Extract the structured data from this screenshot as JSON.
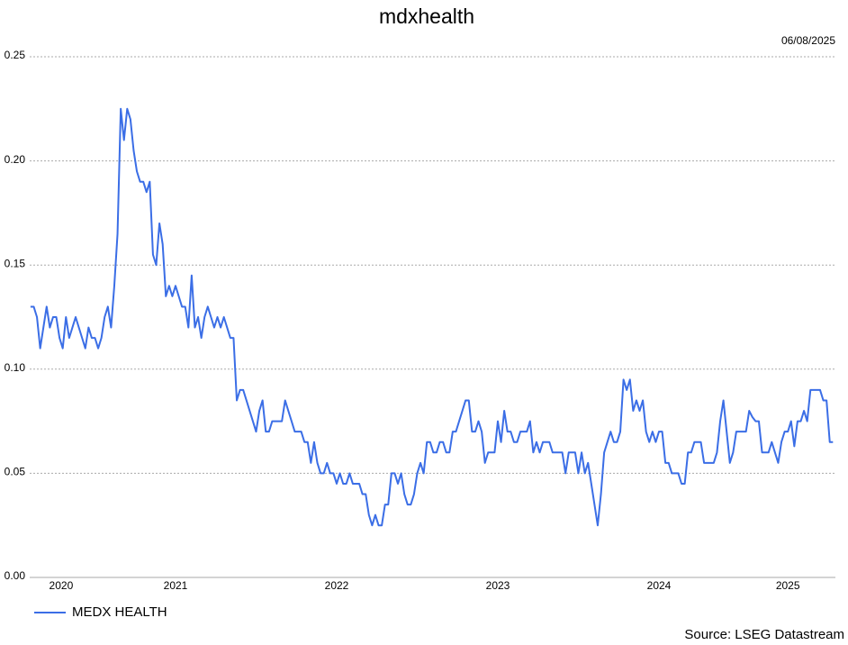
{
  "chart_data": {
    "type": "line",
    "title": "mdxhealth",
    "date": "06/08/2025",
    "source": "Source: LSEG Datastream",
    "x": [
      2020.6,
      2020.62,
      2020.64,
      2020.66,
      2020.68,
      2020.7,
      2020.72,
      2020.74,
      2020.76,
      2020.78,
      2020.8,
      2020.82,
      2020.84,
      2020.86,
      2020.88,
      2020.9,
      2020.92,
      2020.94,
      2020.96,
      2020.98,
      2021,
      2021.02,
      2021.04,
      2021.06,
      2021.08,
      2021.1,
      2021.12,
      2021.14,
      2021.16,
      2021.18,
      2021.2,
      2021.22,
      2021.24,
      2021.26,
      2021.28,
      2021.3,
      2021.32,
      2021.34,
      2021.36,
      2021.38,
      2021.4,
      2021.42,
      2021.44,
      2021.46,
      2021.48,
      2021.5,
      2021.52,
      2021.54,
      2021.56,
      2021.58,
      2021.6,
      2021.62,
      2021.64,
      2021.66,
      2021.68,
      2021.7,
      2021.72,
      2021.74,
      2021.76,
      2021.78,
      2021.8,
      2021.82,
      2021.84,
      2021.86,
      2021.88,
      2021.9,
      2021.92,
      2021.94,
      2021.96,
      2021.98,
      2022,
      2022.02,
      2022.04,
      2022.06,
      2022.08,
      2022.1,
      2022.12,
      2022.14,
      2022.16,
      2022.18,
      2022.2,
      2022.22,
      2022.24,
      2022.26,
      2022.28,
      2022.3,
      2022.32,
      2022.34,
      2022.36,
      2022.38,
      2022.4,
      2022.42,
      2022.44,
      2022.46,
      2022.48,
      2022.5,
      2022.52,
      2022.54,
      2022.56,
      2022.58,
      2022.6,
      2022.62,
      2022.64,
      2022.66,
      2022.68,
      2022.7,
      2022.72,
      2022.74,
      2022.76,
      2022.78,
      2022.8,
      2022.82,
      2022.84,
      2022.86,
      2022.88,
      2022.9,
      2022.92,
      2022.94,
      2022.96,
      2022.98,
      2023,
      2023.02,
      2023.04,
      2023.06,
      2023.08,
      2023.1,
      2023.12,
      2023.14,
      2023.16,
      2023.18,
      2023.2,
      2023.22,
      2023.24,
      2023.26,
      2023.28,
      2023.3,
      2023.32,
      2023.34,
      2023.36,
      2023.38,
      2023.4,
      2023.42,
      2023.44,
      2023.46,
      2023.48,
      2023.5,
      2023.52,
      2023.54,
      2023.56,
      2023.58,
      2023.6,
      2023.62,
      2023.64,
      2023.66,
      2023.68,
      2023.7,
      2023.72,
      2023.74,
      2023.76,
      2023.78,
      2023.8,
      2023.82,
      2023.84,
      2023.86,
      2023.88,
      2023.9,
      2023.92,
      2023.94,
      2023.96,
      2023.98,
      2024,
      2024.02,
      2024.04,
      2024.06,
      2024.08,
      2024.1,
      2024.12,
      2024.14,
      2024.16,
      2024.18,
      2024.2,
      2024.22,
      2024.24,
      2024.26,
      2024.28,
      2024.3,
      2024.32,
      2024.34,
      2024.36,
      2024.38,
      2024.4,
      2024.42,
      2024.44,
      2024.46,
      2024.48,
      2024.5,
      2024.52,
      2024.54,
      2024.56,
      2024.58,
      2024.6,
      2024.62,
      2024.64,
      2024.66,
      2024.68,
      2024.7,
      2024.72,
      2024.74,
      2024.76,
      2024.78,
      2024.8,
      2024.82,
      2024.84,
      2024.86,
      2024.88,
      2024.9,
      2024.92,
      2024.94,
      2024.96,
      2024.98,
      2025,
      2025.02,
      2025.04,
      2025.06,
      2025.08,
      2025.1,
      2025.12,
      2025.14,
      2025.16,
      2025.18,
      2025.2,
      2025.22,
      2025.24,
      2025.26,
      2025.28,
      2025.3,
      2025.32,
      2025.34,
      2025.36,
      2025.38,
      2025.4,
      2025.42,
      2025.44,
      2025.46,
      2025.48,
      2025.5,
      2025.52,
      2025.54,
      2025.56,
      2025.58
    ],
    "series": [
      {
        "name": "MEDX HEALTH",
        "color": "#3b6ee6",
        "values": [
          0.13,
          0.13,
          0.125,
          0.11,
          0.12,
          0.13,
          0.12,
          0.125,
          0.125,
          0.115,
          0.11,
          0.125,
          0.115,
          0.12,
          0.125,
          0.12,
          0.115,
          0.11,
          0.12,
          0.115,
          0.115,
          0.11,
          0.115,
          0.125,
          0.13,
          0.12,
          0.14,
          0.165,
          0.225,
          0.21,
          0.225,
          0.22,
          0.205,
          0.195,
          0.19,
          0.19,
          0.185,
          0.19,
          0.155,
          0.15,
          0.17,
          0.16,
          0.135,
          0.14,
          0.135,
          0.14,
          0.135,
          0.13,
          0.13,
          0.12,
          0.145,
          0.12,
          0.125,
          0.115,
          0.125,
          0.13,
          0.125,
          0.12,
          0.125,
          0.12,
          0.125,
          0.12,
          0.115,
          0.115,
          0.085,
          0.09,
          0.09,
          0.085,
          0.08,
          0.075,
          0.07,
          0.08,
          0.085,
          0.07,
          0.07,
          0.075,
          0.075,
          0.075,
          0.075,
          0.085,
          0.08,
          0.075,
          0.07,
          0.07,
          0.07,
          0.065,
          0.065,
          0.055,
          0.065,
          0.055,
          0.05,
          0.05,
          0.055,
          0.05,
          0.05,
          0.045,
          0.05,
          0.045,
          0.045,
          0.05,
          0.045,
          0.045,
          0.045,
          0.04,
          0.04,
          0.03,
          0.025,
          0.03,
          0.025,
          0.025,
          0.035,
          0.035,
          0.05,
          0.05,
          0.045,
          0.05,
          0.04,
          0.035,
          0.035,
          0.04,
          0.05,
          0.055,
          0.05,
          0.065,
          0.065,
          0.06,
          0.06,
          0.065,
          0.065,
          0.06,
          0.06,
          0.07,
          0.07,
          0.075,
          0.08,
          0.085,
          0.085,
          0.07,
          0.07,
          0.075,
          0.07,
          0.055,
          0.06,
          0.06,
          0.06,
          0.075,
          0.065,
          0.08,
          0.07,
          0.07,
          0.065,
          0.065,
          0.07,
          0.07,
          0.07,
          0.075,
          0.06,
          0.065,
          0.06,
          0.065,
          0.065,
          0.065,
          0.06,
          0.06,
          0.06,
          0.06,
          0.05,
          0.06,
          0.06,
          0.06,
          0.05,
          0.06,
          0.05,
          0.055,
          0.045,
          0.035,
          0.025,
          0.04,
          0.06,
          0.065,
          0.07,
          0.065,
          0.065,
          0.07,
          0.095,
          0.09,
          0.095,
          0.08,
          0.085,
          0.08,
          0.085,
          0.07,
          0.065,
          0.07,
          0.065,
          0.07,
          0.07,
          0.055,
          0.055,
          0.05,
          0.05,
          0.05,
          0.045,
          0.045,
          0.06,
          0.06,
          0.065,
          0.065,
          0.065,
          0.055,
          0.055,
          0.055,
          0.055,
          0.06,
          0.075,
          0.085,
          0.07,
          0.055,
          0.06,
          0.07,
          0.07,
          0.07,
          0.07,
          0.08,
          0.077,
          0.075,
          0.075,
          0.06,
          0.06,
          0.06,
          0.065,
          0.06,
          0.055,
          0.065,
          0.07,
          0.07,
          0.075,
          0.063,
          0.075,
          0.075,
          0.08,
          0.075,
          0.09,
          0.09,
          0.09,
          0.09,
          0.085,
          0.085,
          0.065,
          0.065
        ]
      }
    ],
    "xlim": [
      2020.595,
      2025.595
    ],
    "xticks": [
      {
        "value": 2020.79,
        "label": "2020"
      },
      {
        "value": 2021.5,
        "label": "2021"
      },
      {
        "value": 2022.5,
        "label": "2022"
      },
      {
        "value": 2023.5,
        "label": "2023"
      },
      {
        "value": 2024.5,
        "label": "2024"
      },
      {
        "value": 2025.3,
        "label": "2025"
      }
    ],
    "ylim": [
      0,
      0.25
    ],
    "yticks": [
      {
        "value": 0,
        "label": "0.00"
      },
      {
        "value": 0.05,
        "label": "0.05"
      },
      {
        "value": 0.1,
        "label": "0.10"
      },
      {
        "value": 0.15,
        "label": "0.15"
      },
      {
        "value": 0.2,
        "label": "0.20"
      },
      {
        "value": 0.25,
        "label": "0.25"
      }
    ],
    "grid": true,
    "legend": "bottom-left"
  }
}
